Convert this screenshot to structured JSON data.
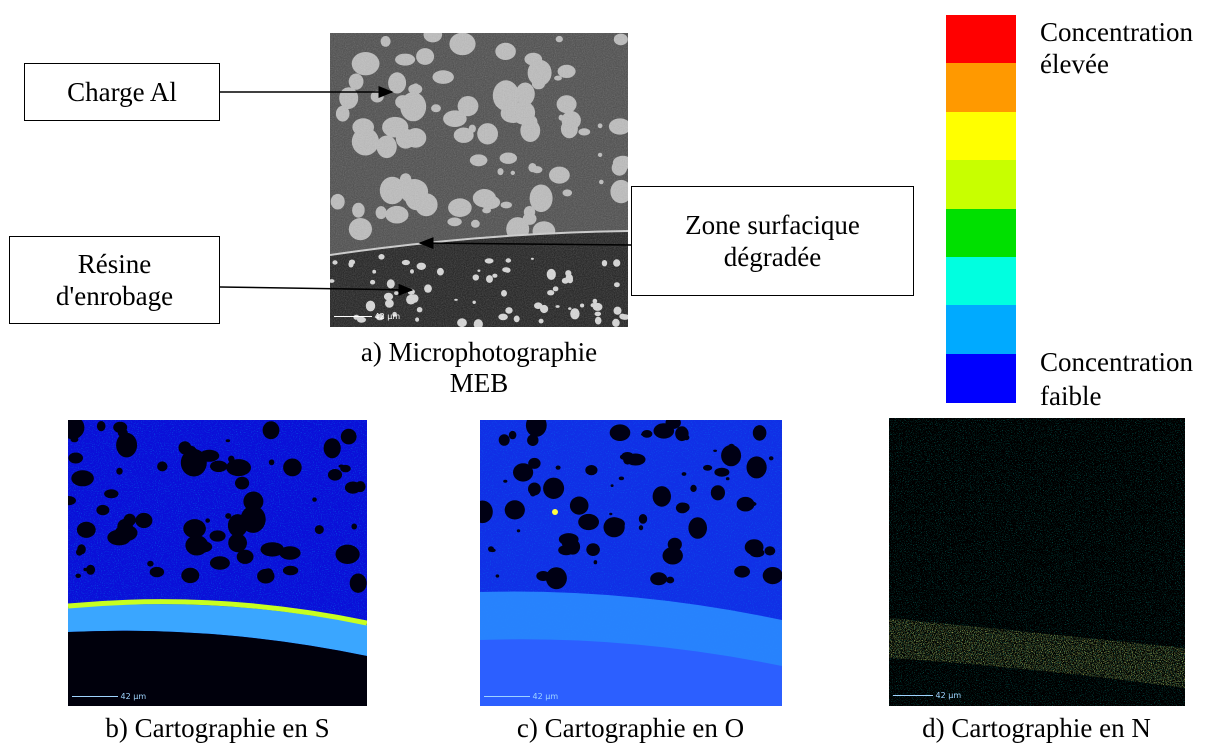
{
  "panel_a": {
    "caption_line1": "a) Microphotographie",
    "caption_line2": "MEB",
    "scale_label": "42 µm",
    "label_charge": "Charge Al",
    "label_resine_line1": "Résine",
    "label_resine_line2": "d'enrobage",
    "label_zone_line1": "Zone surfacique",
    "label_zone_line2": "dégradée"
  },
  "legend": {
    "high_line1": "Concentration",
    "high_line2": "élevée",
    "low_line1": "Concentration",
    "low_line2": "faible",
    "colors": [
      "#ff0000",
      "#ff9900",
      "#ffff00",
      "#c8ff00",
      "#00e000",
      "#00ffe0",
      "#00aaff",
      "#0000ff"
    ]
  },
  "panel_b": {
    "caption": "b) Cartographie en S",
    "scale_label": "42 µm"
  },
  "panel_c": {
    "caption": "c) Cartographie en O",
    "scale_label": "42 µm"
  },
  "panel_d": {
    "caption": "d) Cartographie en N",
    "scale_label": "42 µm"
  }
}
